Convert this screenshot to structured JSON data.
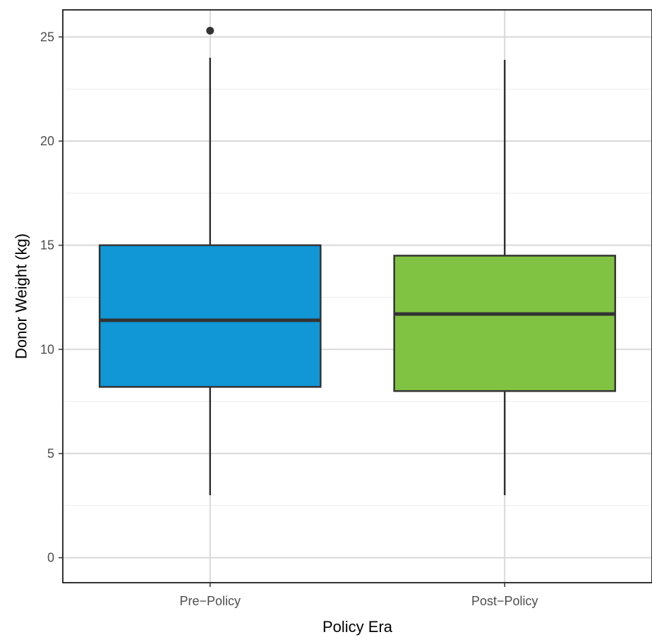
{
  "chart_data": {
    "type": "box",
    "title": "",
    "xlabel": "Policy Era",
    "ylabel": "Donor Weight (kg)",
    "ylim": [
      -1.2,
      26.3
    ],
    "yticks": [
      0,
      5,
      10,
      15,
      20,
      25
    ],
    "grid": true,
    "categories": [
      "Pre−Policy",
      "Post−Policy"
    ],
    "boxes": [
      {
        "category": "Pre−Policy",
        "min": 3.0,
        "q1": 8.2,
        "median": 11.4,
        "q3": 15.0,
        "max": 24.0,
        "outliers": [
          25.3
        ],
        "color": "#1197d6"
      },
      {
        "category": "Post−Policy",
        "min": 3.0,
        "q1": 8.0,
        "median": 11.7,
        "q3": 14.5,
        "max": 23.9,
        "outliers": [],
        "color": "#80c342"
      }
    ]
  }
}
